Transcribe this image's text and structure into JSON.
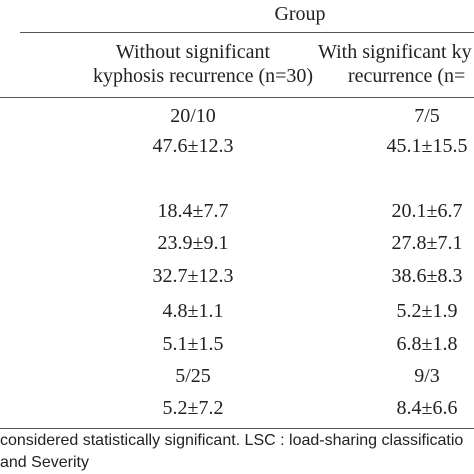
{
  "table": {
    "group_header": "Group",
    "columns": [
      {
        "line1": "Without significant",
        "line2": "kyphosis recurrence (n=30)"
      },
      {
        "line1": "With significant ky",
        "line2": "recurrence (n="
      }
    ],
    "rows": [
      [
        "20/10",
        "7/5"
      ],
      [
        "47.6±12.3",
        "45.1±15.5"
      ],
      [
        "",
        ""
      ],
      [
        "18.4±7.7",
        "20.1±6.7"
      ],
      [
        "23.9±9.1",
        "27.8±7.1"
      ],
      [
        "32.7±12.3",
        "38.6±8.3"
      ],
      [
        "4.8±1.1",
        "5.2±1.9"
      ],
      [
        "5.1±1.5",
        "6.8±1.8"
      ],
      [
        "5/25",
        "9/3"
      ],
      [
        "5.2±7.2",
        "8.4±6.6"
      ]
    ]
  },
  "footnote": {
    "line1": "considered statistically significant. LSC : load-sharing classificatio",
    "line2": "and Severity"
  }
}
